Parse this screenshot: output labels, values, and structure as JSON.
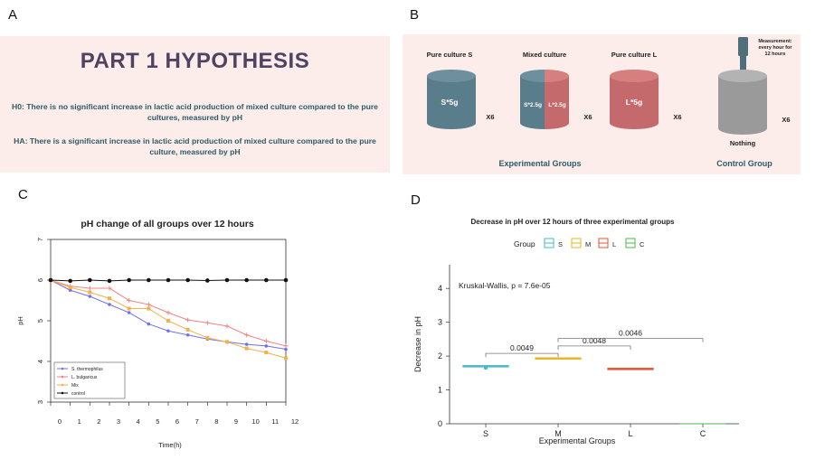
{
  "panel_a": {
    "label": "A",
    "title": "PART 1 HYPOTHESIS",
    "h0": "H0: There is no significant increase in lactic acid production of mixed culture compared to the pure cultures, measured by pH",
    "ha": "HA: There is a significant increase in lactic acid production of mixed culture compared to the pure culture, measured by pH"
  },
  "panel_b": {
    "label": "B",
    "jar_s_title": "Pure culture S",
    "jar_s_content": "S*5g",
    "jar_m_title": "Mixed culture",
    "jar_m_left": "S*2.5g",
    "jar_m_right": "L*2.5g",
    "jar_l_title": "Pure culture L",
    "jar_l_content": "L*5g",
    "jar_c_content": "Nothing",
    "multiplier": "X6",
    "measurement_line1": "Measurement:",
    "measurement_line2": "every hour for",
    "measurement_line3": "12 hours",
    "experimental_groups": "Experimental Groups",
    "control_group": "Control Group",
    "colors": {
      "s": "#5a7d8b",
      "l": "#c56a6c",
      "c": "#9a9a9a",
      "probe": "#4f6f7c"
    }
  },
  "panel_c": {
    "label": "C"
  },
  "panel_d": {
    "label": "D"
  },
  "chart_data": [
    {
      "type": "line",
      "title": "pH change of all groups over 12 hours",
      "xlabel": "Time(h)",
      "ylabel": "pH",
      "xlim": [
        0,
        12
      ],
      "ylim": [
        3,
        7
      ],
      "x": [
        0,
        1,
        2,
        3,
        4,
        5,
        6,
        7,
        8,
        9,
        10,
        11,
        12
      ],
      "yticks": [
        3,
        4,
        5,
        6,
        7
      ],
      "legend": "bottom-left",
      "series": [
        {
          "name": "S. thermophilus",
          "color": "#6f72e8",
          "marker": "circle",
          "values": [
            6.0,
            5.75,
            5.6,
            5.4,
            5.2,
            4.92,
            4.75,
            4.65,
            4.55,
            4.48,
            4.42,
            4.38,
            4.3
          ]
        },
        {
          "name": "L. bulgaricus",
          "color": "#f08585",
          "marker": "plus",
          "values": [
            6.0,
            5.85,
            5.8,
            5.8,
            5.5,
            5.4,
            5.2,
            5.02,
            4.95,
            4.87,
            4.65,
            4.5,
            4.38
          ]
        },
        {
          "name": "Mix",
          "color": "#f5b04a",
          "marker": "square",
          "values": [
            6.0,
            5.82,
            5.7,
            5.55,
            5.3,
            5.3,
            5.0,
            4.78,
            4.58,
            4.48,
            4.32,
            4.22,
            4.08
          ]
        },
        {
          "name": "control",
          "color": "#111111",
          "marker": "circle",
          "values": [
            6.0,
            5.98,
            6.0,
            5.98,
            6.0,
            6.0,
            6.0,
            6.0,
            5.99,
            6.0,
            6.0,
            6.0,
            6.0
          ]
        }
      ]
    },
    {
      "type": "box",
      "title": "Decrease in pH over 12 hours of three experimental groups",
      "xlabel": "Experimental Groups",
      "ylabel": "Decrease in pH",
      "ylim": [
        0,
        4.7
      ],
      "yticks": [
        0,
        1,
        2,
        3,
        4
      ],
      "legend_title": "Group",
      "categories": [
        "S",
        "M",
        "L",
        "C"
      ],
      "colors": [
        "#4ab8c8",
        "#e9b523",
        "#e8502e",
        "#49b84a"
      ],
      "values": [
        1.7,
        1.93,
        1.62,
        0.0
      ],
      "outlier": {
        "category": "S",
        "value": 1.65
      },
      "annotation": "Kruskal-Wallis, p = 7.6e-05",
      "comparisons": [
        {
          "from": "S",
          "to": "M",
          "label": "0.0049",
          "y": 2.08
        },
        {
          "from": "M",
          "to": "L",
          "label": "0.0048",
          "y": 2.3
        },
        {
          "from": "M",
          "to": "C",
          "label": "0.0046",
          "y": 2.52
        }
      ]
    }
  ]
}
